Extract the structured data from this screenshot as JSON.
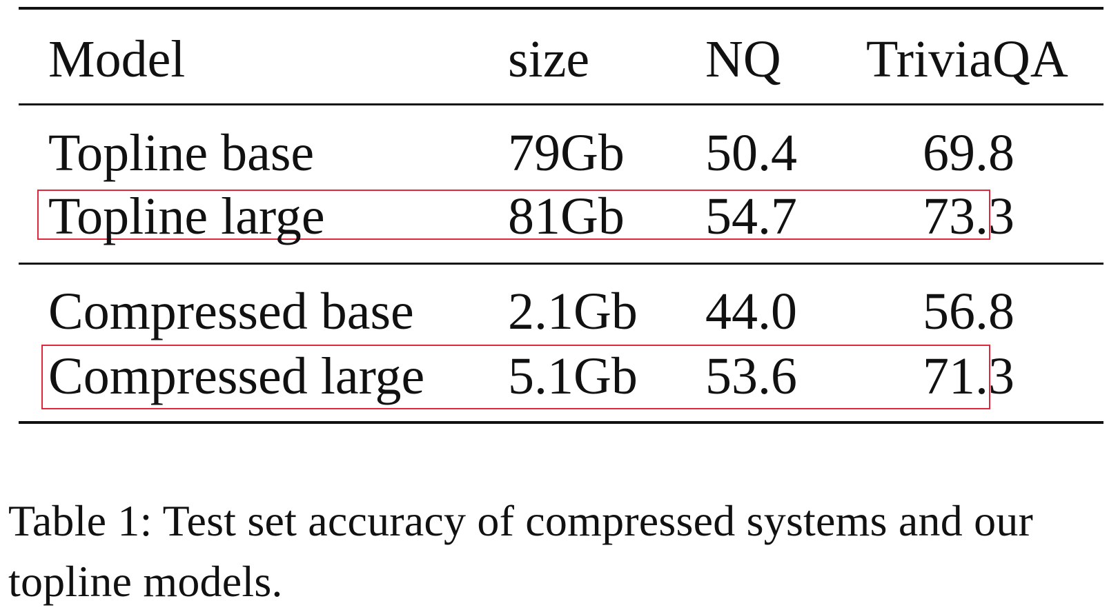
{
  "table": {
    "headers": {
      "model": "Model",
      "size": "size",
      "nq": "NQ",
      "triviaqa": "TriviaQA"
    },
    "groups": [
      {
        "rows": [
          {
            "model": "Topline base",
            "size": "79Gb",
            "nq": "50.4",
            "triviaqa": "69.8",
            "highlighted": false
          },
          {
            "model": "Topline large",
            "size": "81Gb",
            "nq": "54.7",
            "triviaqa": "73.3",
            "highlighted": true
          }
        ]
      },
      {
        "rows": [
          {
            "model": "Compressed base",
            "size": "2.1Gb",
            "nq": "44.0",
            "triviaqa": "56.8",
            "highlighted": false
          },
          {
            "model": "Compressed large",
            "size": "5.1Gb",
            "nq": "53.6",
            "triviaqa": "71.3",
            "highlighted": true
          }
        ]
      }
    ],
    "highlight_color": "#e0263b"
  },
  "caption": "Table 1: Test set accuracy of compressed systems and our topline models."
}
